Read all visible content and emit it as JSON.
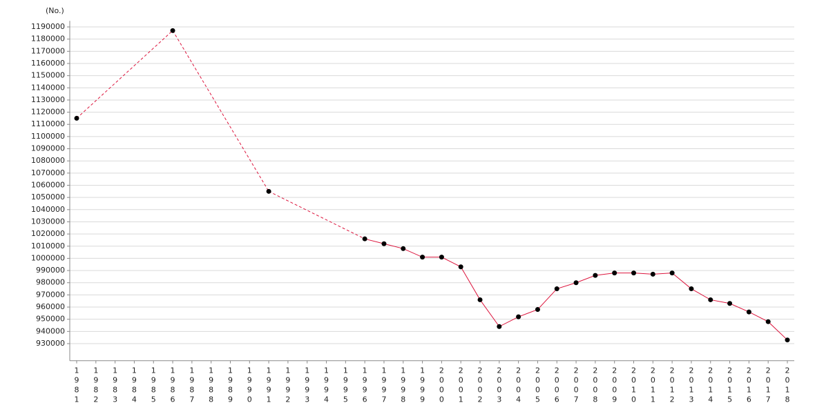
{
  "chart_data": {
    "type": "line",
    "y_label": "(No.)",
    "categories": [
      "1981",
      "1982",
      "1983",
      "1984",
      "1985",
      "1986",
      "1987",
      "1988",
      "1989",
      "1990",
      "1991",
      "1992",
      "1993",
      "1994",
      "1995",
      "1996",
      "1997",
      "1998",
      "1999",
      "2000",
      "2001",
      "2002",
      "2003",
      "2004",
      "2005",
      "2006",
      "2007",
      "2008",
      "2009",
      "2010",
      "2011",
      "2012",
      "2013",
      "2014",
      "2015",
      "2016",
      "2017",
      "2018"
    ],
    "series": [
      {
        "color": "#dc143c",
        "marker_color": "#000000",
        "values": [
          1115000,
          null,
          null,
          null,
          null,
          1187000,
          null,
          null,
          null,
          null,
          1055000,
          null,
          null,
          null,
          null,
          1016000,
          1012000,
          1008000,
          1001000,
          1001000,
          993000,
          966000,
          944000,
          952000,
          958000,
          975000,
          980000,
          986000,
          988000,
          988000,
          987000,
          988000,
          975000,
          966000,
          963000,
          956000,
          948000,
          933000
        ]
      }
    ],
    "ylim": [
      916000,
      1195000
    ],
    "yticks": [
      930000,
      940000,
      950000,
      960000,
      970000,
      980000,
      990000,
      1000000,
      1010000,
      1020000,
      1030000,
      1040000,
      1050000,
      1060000,
      1070000,
      1080000,
      1090000,
      1100000,
      1110000,
      1120000,
      1130000,
      1140000,
      1150000,
      1160000,
      1170000,
      1180000,
      1190000
    ],
    "grid": true,
    "gap_style": "dashed"
  }
}
